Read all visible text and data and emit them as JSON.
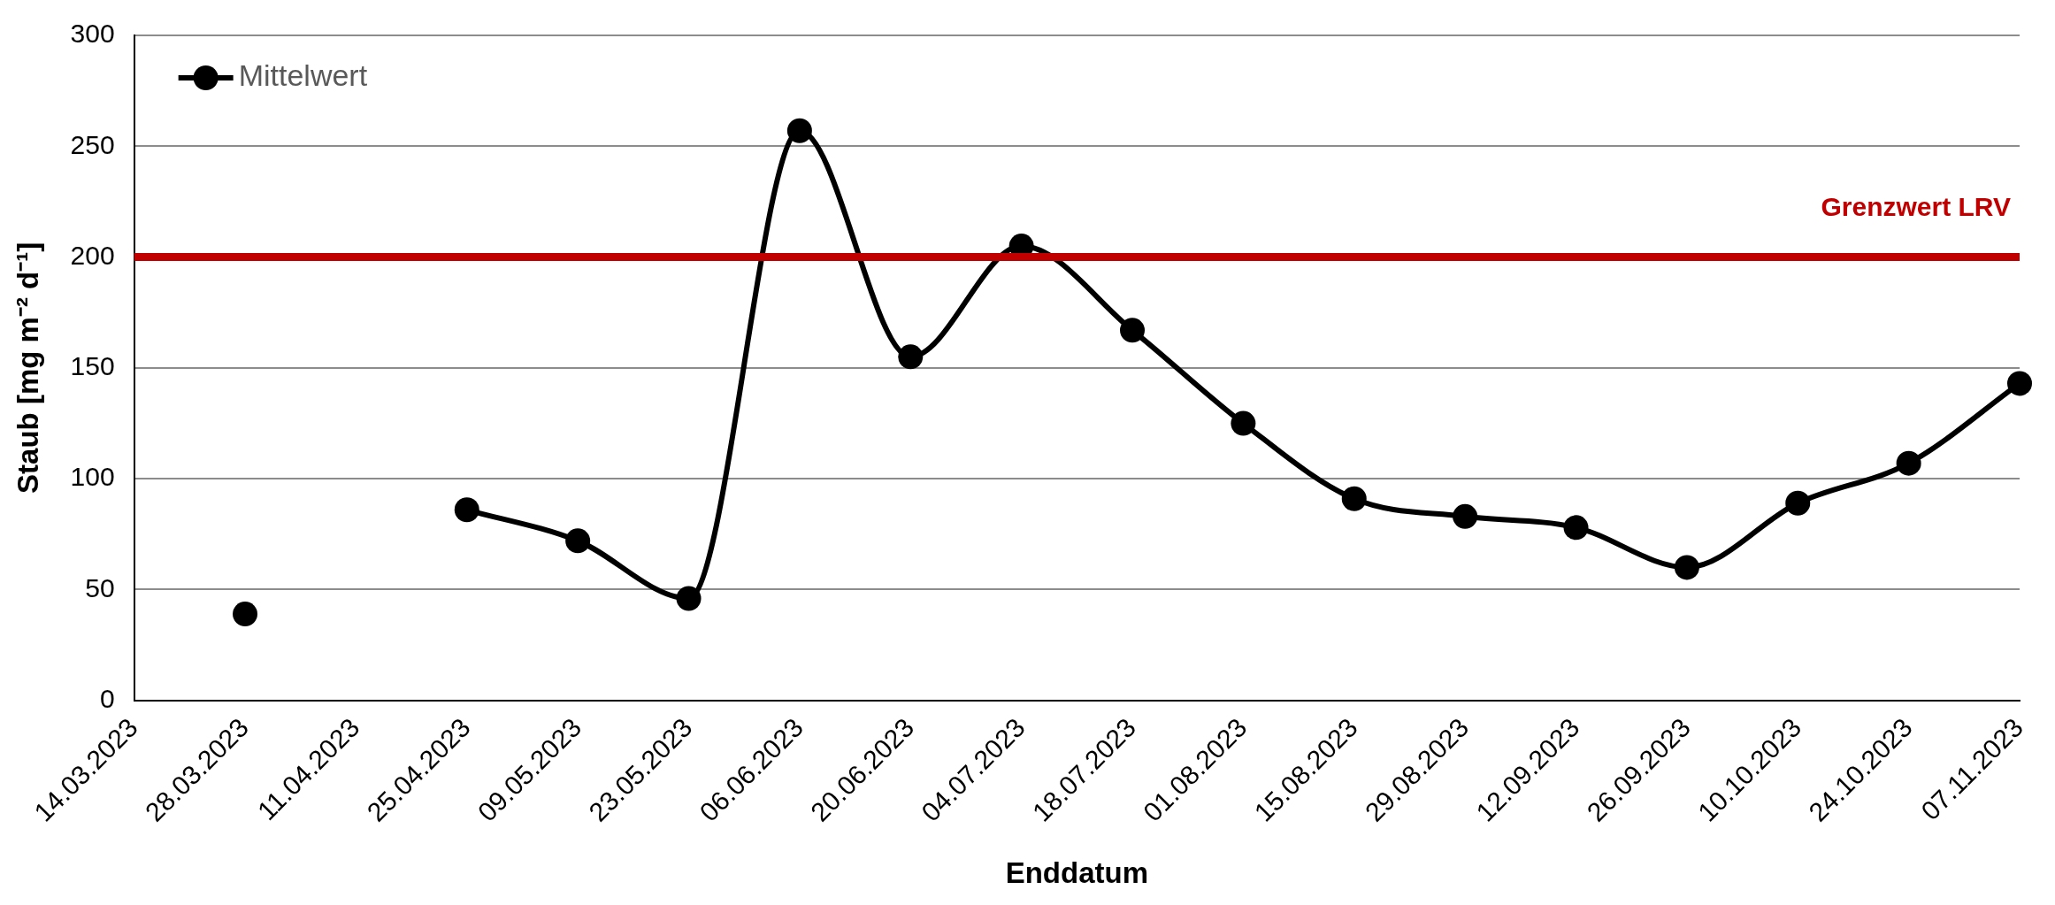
{
  "chart_data": {
    "type": "line",
    "xlabel": "Enddatum",
    "ylabel": "Staub [mg m⁻² d⁻¹]",
    "categories": [
      "14.03.2023",
      "28.03.2023",
      "11.04.2023",
      "25.04.2023",
      "09.05.2023",
      "23.05.2023",
      "06.06.2023",
      "20.06.2023",
      "04.07.2023",
      "18.07.2023",
      "01.08.2023",
      "15.08.2023",
      "29.08.2023",
      "12.09.2023",
      "26.09.2023",
      "10.10.2023",
      "24.10.2023",
      "07.11.2023"
    ],
    "series": [
      {
        "name": "Mittelwert",
        "color": "#000000",
        "values": [
          null,
          39,
          null,
          86,
          72,
          46,
          257,
          155,
          205,
          167,
          125,
          91,
          83,
          78,
          60,
          89,
          107,
          143
        ]
      }
    ],
    "ylim": [
      0,
      300
    ],
    "yticks": [
      0,
      50,
      100,
      150,
      200,
      250,
      300
    ],
    "grid": "y",
    "legend": "top left",
    "marker": "circle",
    "line_style": "solid",
    "ref_lines": [
      {
        "axis": "y",
        "value": 200,
        "label": "Grenzwert LRV",
        "color": "#c00000"
      }
    ]
  }
}
